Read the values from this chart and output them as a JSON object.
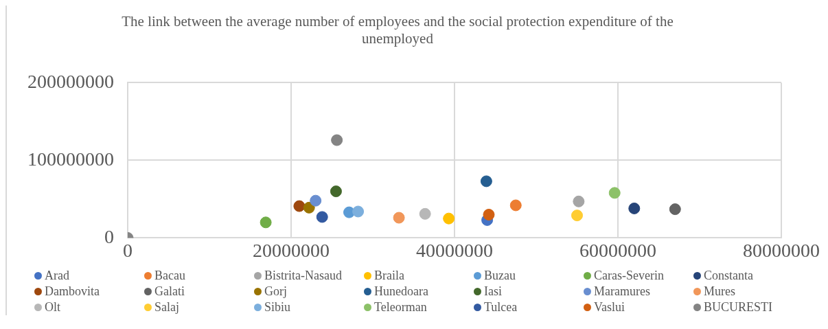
{
  "chart_data": {
    "type": "scatter",
    "title": "The link between the average number of employees and the social protection expenditure of the unemployed",
    "xlim": [
      0,
      80000000
    ],
    "xticks": [
      0,
      20000000,
      40000000,
      60000000,
      80000000
    ],
    "ylim": [
      0,
      200000000
    ],
    "yticks": [
      0,
      100000000,
      200000000
    ],
    "grid": true,
    "legend": "bottom",
    "marker": "circle",
    "series": [
      {
        "name": "Arad",
        "color": "#4472c4",
        "x": [
          44000000
        ],
        "values": [
          23000000
        ]
      },
      {
        "name": "Bacau",
        "color": "#ed7d31",
        "x": [
          47500000
        ],
        "values": [
          42000000
        ]
      },
      {
        "name": "Bistrita-Nasaud",
        "color": "#a5a5a5",
        "x": [
          55200000
        ],
        "values": [
          47000000
        ]
      },
      {
        "name": "Braila",
        "color": "#ffc000",
        "x": [
          39300000
        ],
        "values": [
          25000000
        ]
      },
      {
        "name": "Buzau",
        "color": "#5b9bd5",
        "x": [
          27100000
        ],
        "values": [
          33000000
        ]
      },
      {
        "name": "Caras-Severin",
        "color": "#70ad47",
        "x": [
          16900000
        ],
        "values": [
          20000000
        ]
      },
      {
        "name": "Constanta",
        "color": "#264478",
        "x": [
          62000000
        ],
        "values": [
          38000000
        ]
      },
      {
        "name": "Dambovita",
        "color": "#9e480e",
        "x": [
          21000000
        ],
        "values": [
          41000000
        ]
      },
      {
        "name": "Galati",
        "color": "#636363",
        "x": [
          67000000
        ],
        "values": [
          37000000
        ]
      },
      {
        "name": "Gorj",
        "color": "#997300",
        "x": [
          22200000
        ],
        "values": [
          39000000
        ]
      },
      {
        "name": "Hunedoara",
        "color": "#255e91",
        "x": [
          43900000
        ],
        "values": [
          73000000
        ]
      },
      {
        "name": "Iasi",
        "color": "#43682b",
        "x": [
          25500000
        ],
        "values": [
          60000000
        ]
      },
      {
        "name": "Maramures",
        "color": "#698ed0",
        "x": [
          23000000
        ],
        "values": [
          48000000
        ]
      },
      {
        "name": "Mures",
        "color": "#f1975a",
        "x": [
          33200000
        ],
        "values": [
          26000000
        ]
      },
      {
        "name": "Olt",
        "color": "#b7b7b7",
        "x": [
          36400000
        ],
        "values": [
          31000000
        ]
      },
      {
        "name": "Salaj",
        "color": "#ffcd33",
        "x": [
          55000000
        ],
        "values": [
          29000000
        ]
      },
      {
        "name": "Sibiu",
        "color": "#7cafdd",
        "x": [
          28200000
        ],
        "values": [
          34000000
        ]
      },
      {
        "name": "Teleorman",
        "color": "#8cc168",
        "x": [
          59600000
        ],
        "values": [
          58000000
        ]
      },
      {
        "name": "Tulcea",
        "color": "#335aa1",
        "x": [
          23800000
        ],
        "values": [
          27000000
        ]
      },
      {
        "name": "Vaslui",
        "color": "#d26012",
        "x": [
          44200000
        ],
        "values": [
          30000000
        ]
      },
      {
        "name": "BUCURESTI",
        "color": "#848484",
        "x": [
          0,
          25600000
        ],
        "values": [
          0,
          126000000
        ]
      }
    ]
  }
}
